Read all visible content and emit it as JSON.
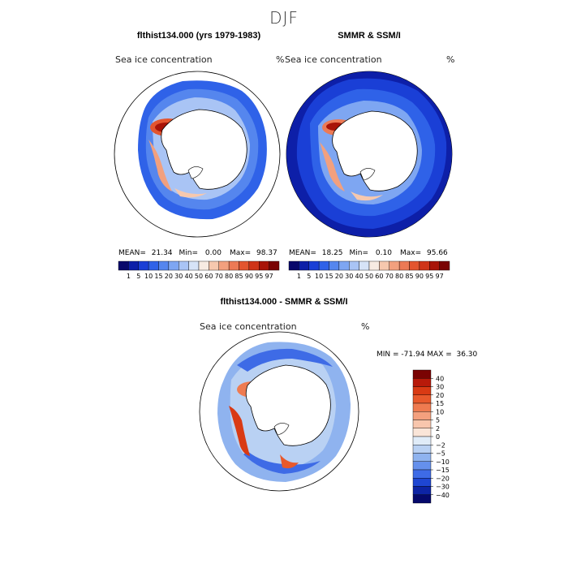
{
  "main_title": "DJF",
  "panels": {
    "left": {
      "title": "flthist134.000 (yrs 1979-1983)",
      "field": "Sea ice concentration",
      "unit": "%",
      "mean_label": "MEAN=",
      "mean": "21.34",
      "min_label": "Min=",
      "min": "0.00",
      "max_label": "Max=",
      "max": "98.37"
    },
    "right": {
      "title": "SMMR & SSM/I",
      "field": "Sea ice concentration",
      "unit": "%",
      "mean_label": "MEAN=",
      "mean": "18.25",
      "min_label": "Min=",
      "min": "0.10",
      "max_label": "Max=",
      "max": "95.66"
    },
    "diff": {
      "title": "flthist134.000 - SMMR & SSM/I",
      "field": "Sea ice concentration",
      "unit": "%",
      "minmax_text": "MIN = -71.94 MAX =  36.30"
    }
  },
  "concentration_colorbar": {
    "tick_labels": [
      "1",
      "5",
      "10",
      "15",
      "20",
      "30",
      "40",
      "50",
      "60",
      "70",
      "80",
      "85",
      "90",
      "95",
      "97"
    ],
    "colors": [
      "#08086b",
      "#0d1fa8",
      "#1a3fd6",
      "#2f62e8",
      "#5586ee",
      "#7ea6f2",
      "#a9c4f5",
      "#d6e3f7",
      "#f7ebe2",
      "#f6c8ae",
      "#f2a07e",
      "#ec7a55",
      "#e3552f",
      "#cf3418",
      "#a81408",
      "#7a0303"
    ]
  },
  "difference_colorbar": {
    "tick_labels": [
      "40",
      "30",
      "20",
      "15",
      "10",
      "5",
      "2",
      "0",
      "−2",
      "−5",
      "−10",
      "−15",
      "−20",
      "−30",
      "−40"
    ],
    "colors": [
      "#7a0303",
      "#b81a0a",
      "#d93a14",
      "#e8592c",
      "#ef7b50",
      "#f4a07e",
      "#f8c6ad",
      "#fae5d8",
      "#e0ecf8",
      "#b9d1f3",
      "#8fb3ef",
      "#6590ec",
      "#3e6be6",
      "#1e46d2",
      "#0d24a4",
      "#05096b"
    ]
  }
}
